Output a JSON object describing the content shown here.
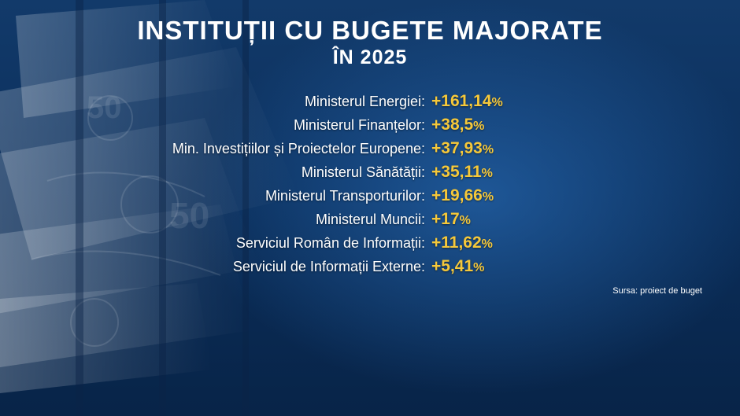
{
  "title": "INSTITUȚII CU BUGETE MAJORATE",
  "subtitle": "ÎN 2025",
  "rows": [
    {
      "label": "Ministerul Energiei:",
      "value": "+161,14",
      "unit": "%"
    },
    {
      "label": "Ministerul Finanțelor:",
      "value": "+38,5",
      "unit": "%"
    },
    {
      "label": "Min. Investițiilor și Proiectelor Europene:",
      "value": "+37,93",
      "unit": "%"
    },
    {
      "label": "Ministerul Sănătății:",
      "value": "+35,11",
      "unit": "%"
    },
    {
      "label": "Ministerul Transporturilor:",
      "value": "+19,66",
      "unit": "%"
    },
    {
      "label": "Ministerul Muncii:",
      "value": "+17",
      "unit": "%"
    },
    {
      "label": "Serviciul Român de Informații:",
      "value": "+11,62",
      "unit": "%"
    },
    {
      "label": "Serviciul de Informații Externe:",
      "value": "+5,41",
      "unit": "%"
    }
  ],
  "source": "Sursa: proiect de buget",
  "colors": {
    "background": "#0b2f5c",
    "label_text": "#ffffff",
    "value_text": "#f5c83a"
  }
}
